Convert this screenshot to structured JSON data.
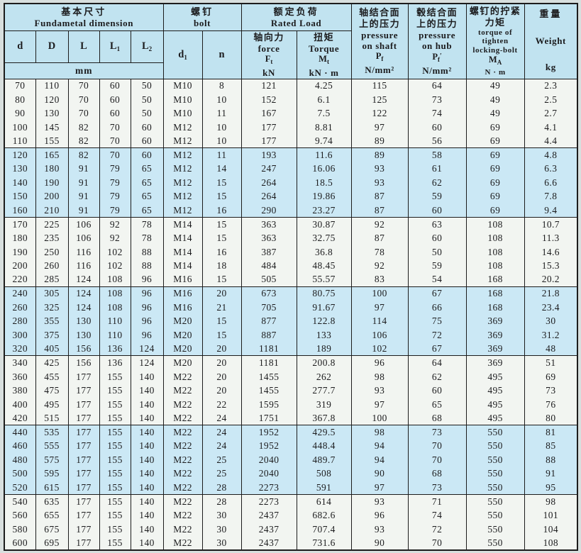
{
  "colors": {
    "header_bg": "#c1e3f0",
    "row_blue": "#cbe8f5",
    "row_white": "#f2f5f1",
    "border": "#1c1c1c"
  },
  "header": {
    "dim_group": {
      "cn": "基本尺寸",
      "en": "Fundametal dimension"
    },
    "bolt_group": {
      "cn": "螺钉",
      "en": "bolt"
    },
    "load_group": {
      "cn": "额定负荷",
      "en": "Rated Load"
    },
    "cols": {
      "d": "d",
      "D": "D",
      "L": "L",
      "L1": {
        "sym": "L",
        "sub": "1"
      },
      "L2": {
        "sym": "L",
        "sub": "2"
      },
      "mm": "mm",
      "d1": {
        "sym": "d",
        "sub": "1"
      },
      "n": "n",
      "force": {
        "cn": "轴向力",
        "en": "force",
        "sym": "F",
        "sub": "t",
        "unit": "kN"
      },
      "torque": {
        "cn": "扭矩",
        "en": "Torque",
        "sym": "M",
        "sub": "t",
        "unit": "kN · m"
      },
      "p_shaft": {
        "cn1": "轴结合面",
        "cn2": "上的压力",
        "en1": "pressure",
        "en2": "on shaft",
        "sym": "P",
        "sub": "f",
        "unit": "N/mm²"
      },
      "p_hub": {
        "cn1": "毂结合面",
        "cn2": "上的压力",
        "en1": "pressure",
        "en2": "on hub",
        "sym": "P",
        "sub": "f",
        "prime": "′",
        "unit": "N/mm²"
      },
      "ma": {
        "cn1": "螺钉的拧紧",
        "cn2": "力矩",
        "en1": "torque of",
        "en2": "tighten",
        "en3": "locking-bolt",
        "sym": "M",
        "sub": "A",
        "unit": "N · m"
      },
      "weight": {
        "cn": "重量",
        "en": "Weight",
        "unit": "kg"
      }
    }
  },
  "chart_data": {
    "type": "table",
    "title": "Locking assembly specification table",
    "columns": [
      "d",
      "D",
      "L",
      "L1",
      "L2",
      "d1",
      "n",
      "Ft kN",
      "Mt kN·m",
      "Pf N/mm2",
      "Pf' N/mm2",
      "MA N·m",
      "Weight kg"
    ]
  },
  "groups": [
    {
      "shade": "white",
      "rows": [
        [
          70,
          110,
          70,
          60,
          50,
          "M10",
          8,
          121,
          4.25,
          115,
          64,
          49,
          2.3
        ],
        [
          80,
          120,
          70,
          60,
          50,
          "M10",
          10,
          152,
          6.1,
          125,
          73,
          49,
          2.5
        ],
        [
          90,
          130,
          70,
          60,
          50,
          "M10",
          11,
          167,
          7.5,
          122,
          74,
          49,
          2.7
        ],
        [
          100,
          145,
          82,
          70,
          60,
          "M12",
          10,
          177,
          8.81,
          97,
          60,
          69,
          4.1
        ],
        [
          110,
          155,
          82,
          70,
          60,
          "M12",
          10,
          177,
          9.74,
          89,
          56,
          69,
          4.4
        ]
      ]
    },
    {
      "shade": "blue",
      "rows": [
        [
          120,
          165,
          82,
          70,
          60,
          "M12",
          11,
          193,
          11.6,
          89,
          58,
          69,
          4.8
        ],
        [
          130,
          180,
          91,
          79,
          65,
          "M12",
          14,
          247,
          16.06,
          93,
          61,
          69,
          6.3
        ],
        [
          140,
          190,
          91,
          79,
          65,
          "M12",
          15,
          264,
          18.5,
          93,
          62,
          69,
          6.6
        ],
        [
          150,
          200,
          91,
          79,
          65,
          "M12",
          15,
          264,
          19.86,
          87,
          59,
          69,
          7.8
        ],
        [
          160,
          210,
          91,
          79,
          65,
          "M12",
          16,
          290,
          23.27,
          87,
          60,
          69,
          9.4
        ]
      ]
    },
    {
      "shade": "white",
      "rows": [
        [
          170,
          225,
          106,
          92,
          78,
          "M14",
          15,
          363,
          30.87,
          92,
          63,
          108,
          10.7
        ],
        [
          180,
          235,
          106,
          92,
          78,
          "M14",
          15,
          363,
          32.75,
          87,
          60,
          108,
          11.3
        ],
        [
          190,
          250,
          116,
          102,
          88,
          "M14",
          16,
          387,
          36.8,
          78,
          50,
          108,
          14.6
        ],
        [
          200,
          260,
          116,
          102,
          88,
          "M14",
          18,
          484,
          48.45,
          92,
          59,
          108,
          15.3
        ],
        [
          220,
          285,
          124,
          108,
          96,
          "M16",
          15,
          505,
          55.57,
          83,
          54,
          168,
          20.2
        ]
      ]
    },
    {
      "shade": "blue",
      "rows": [
        [
          240,
          305,
          124,
          108,
          96,
          "M16",
          20,
          673,
          80.75,
          100,
          67,
          168,
          21.8
        ],
        [
          260,
          325,
          124,
          108,
          96,
          "M16",
          21,
          705,
          91.67,
          97,
          66,
          168,
          23.4
        ],
        [
          280,
          355,
          130,
          110,
          96,
          "M20",
          15,
          877,
          122.8,
          114,
          75,
          369,
          30
        ],
        [
          300,
          375,
          130,
          110,
          96,
          "M20",
          15,
          887,
          133,
          106,
          72,
          369,
          31.2
        ],
        [
          320,
          405,
          156,
          136,
          124,
          "M20",
          20,
          1181,
          189,
          102,
          67,
          369,
          48
        ]
      ]
    },
    {
      "shade": "white",
      "rows": [
        [
          340,
          425,
          156,
          136,
          124,
          "M20",
          20,
          1181,
          200.8,
          96,
          64,
          369,
          51
        ],
        [
          360,
          455,
          177,
          155,
          140,
          "M22",
          20,
          1455,
          262,
          98,
          62,
          495,
          69
        ],
        [
          380,
          475,
          177,
          155,
          140,
          "M22",
          20,
          1455,
          277.7,
          93,
          60,
          495,
          73
        ],
        [
          400,
          495,
          177,
          155,
          140,
          "M22",
          22,
          1595,
          319,
          97,
          65,
          495,
          76
        ],
        [
          420,
          515,
          177,
          155,
          140,
          "M22",
          24,
          1751,
          367.8,
          100,
          68,
          495,
          80
        ]
      ]
    },
    {
      "shade": "blue",
      "rows": [
        [
          440,
          535,
          177,
          155,
          140,
          "M22",
          24,
          1952,
          429.5,
          98,
          73,
          550,
          81
        ],
        [
          460,
          555,
          177,
          155,
          140,
          "M22",
          24,
          1952,
          448.4,
          94,
          70,
          550,
          85
        ],
        [
          480,
          575,
          177,
          155,
          140,
          "M22",
          25,
          2040,
          489.7,
          94,
          70,
          550,
          88
        ],
        [
          500,
          595,
          177,
          155,
          140,
          "M22",
          25,
          2040,
          508,
          90,
          68,
          550,
          91
        ],
        [
          520,
          615,
          177,
          155,
          140,
          "M22",
          28,
          2273,
          591,
          97,
          73,
          550,
          95
        ]
      ]
    },
    {
      "shade": "white",
      "rows": [
        [
          540,
          635,
          177,
          155,
          140,
          "M22",
          28,
          2273,
          614,
          93,
          71,
          550,
          98
        ],
        [
          560,
          655,
          177,
          155,
          140,
          "M22",
          30,
          2437,
          682.6,
          96,
          74,
          550,
          101
        ],
        [
          580,
          675,
          177,
          155,
          140,
          "M22",
          30,
          2437,
          707.4,
          93,
          72,
          550,
          104
        ],
        [
          600,
          695,
          177,
          155,
          140,
          "M22",
          30,
          2437,
          731.6,
          90,
          70,
          550,
          108
        ]
      ]
    }
  ]
}
